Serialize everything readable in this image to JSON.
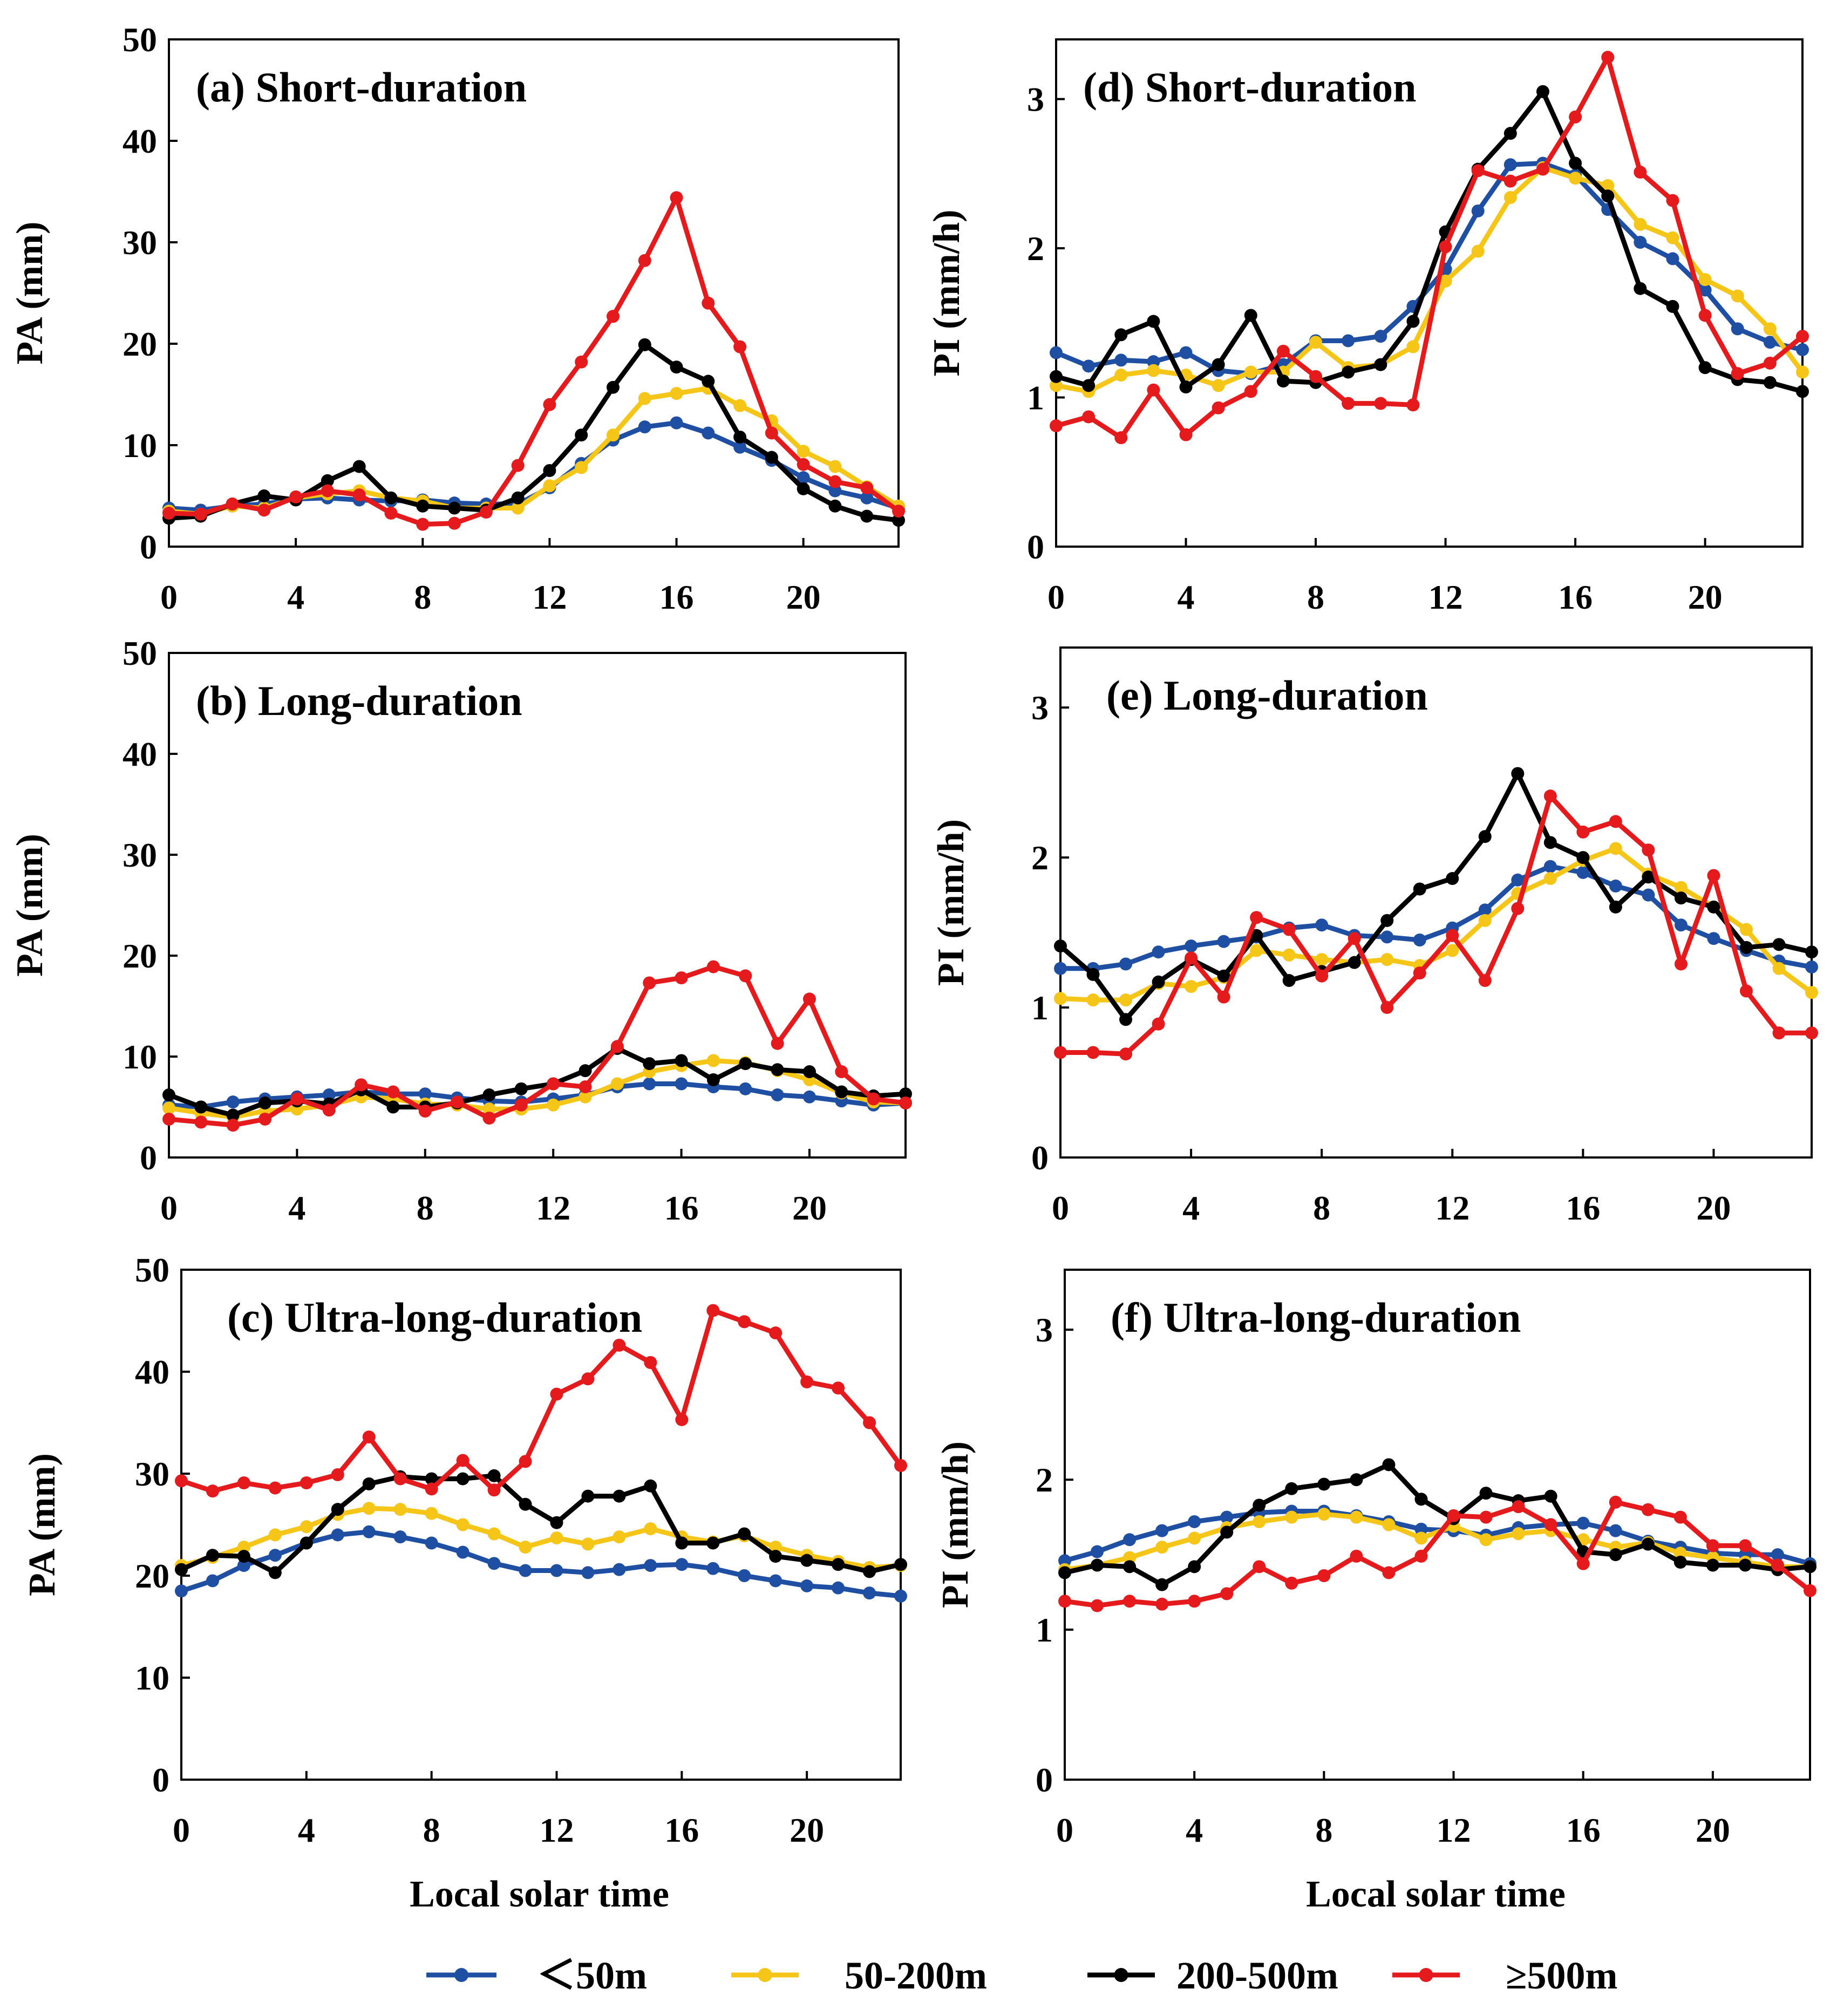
{
  "chart_data": [
    {
      "type": "line",
      "title": "(a) Short-duration",
      "ylabel": "PA (mm)",
      "xlabel": "",
      "x": [
        0,
        1,
        2,
        3,
        4,
        5,
        6,
        7,
        8,
        9,
        10,
        11,
        12,
        13,
        14,
        15,
        16,
        17,
        18,
        19,
        20,
        21,
        22,
        23
      ],
      "xticks": [
        0,
        4,
        8,
        12,
        16,
        20
      ],
      "ylim": [
        0,
        50
      ],
      "yticks": [
        0,
        10,
        20,
        30,
        40,
        50
      ],
      "series": [
        {
          "name": "＜50m",
          "values": [
            3.8,
            3.6,
            4.0,
            4.2,
            4.7,
            4.8,
            4.6,
            4.5,
            4.6,
            4.3,
            4.2,
            4.2,
            5.8,
            8.2,
            10.5,
            11.8,
            12.2,
            11.2,
            9.8,
            8.5,
            6.8,
            5.5,
            4.8,
            3.8
          ]
        },
        {
          "name": "50-200m",
          "values": [
            3.5,
            3.2,
            4.0,
            3.8,
            4.8,
            5.2,
            5.5,
            4.8,
            4.5,
            3.8,
            3.8,
            3.8,
            6.0,
            7.8,
            11.0,
            14.6,
            15.1,
            15.6,
            13.9,
            12.4,
            9.4,
            7.9,
            5.9,
            4.0
          ]
        },
        {
          "name": "200-500m",
          "values": [
            2.8,
            3.0,
            4.2,
            5.0,
            4.6,
            6.5,
            7.9,
            4.8,
            4.0,
            3.8,
            3.6,
            4.8,
            7.5,
            11.0,
            15.7,
            19.9,
            17.7,
            16.3,
            10.8,
            8.8,
            5.7,
            4.0,
            3.0,
            2.6
          ]
        },
        {
          "name": "≥500m",
          "values": [
            3.3,
            3.2,
            4.2,
            3.6,
            4.9,
            5.5,
            5.1,
            3.3,
            2.2,
            2.3,
            3.4,
            8.0,
            14.0,
            18.2,
            22.7,
            28.2,
            34.4,
            24.0,
            19.7,
            11.2,
            8.1,
            6.4,
            5.8,
            3.5
          ]
        }
      ]
    },
    {
      "type": "line",
      "title": "(b) Long-duration",
      "ylabel": "PA (mm)",
      "xlabel": "",
      "x": [
        0,
        1,
        2,
        3,
        4,
        5,
        6,
        7,
        8,
        9,
        10,
        11,
        12,
        13,
        14,
        15,
        16,
        17,
        18,
        19,
        20,
        21,
        22,
        23
      ],
      "xticks": [
        0,
        4,
        8,
        12,
        16,
        20
      ],
      "ylim": [
        0,
        50
      ],
      "yticks": [
        0,
        10,
        20,
        30,
        40,
        50
      ],
      "series": [
        {
          "name": "＜50m",
          "values": [
            5.2,
            5.0,
            5.5,
            5.8,
            6.0,
            6.2,
            6.5,
            6.3,
            6.3,
            5.9,
            5.6,
            5.5,
            5.8,
            6.2,
            7.0,
            7.3,
            7.3,
            7.0,
            6.8,
            6.2,
            6.0,
            5.6,
            5.2,
            5.4
          ]
        },
        {
          "name": "50-200m",
          "values": [
            4.9,
            4.4,
            4.0,
            4.6,
            4.8,
            5.2,
            6.0,
            5.8,
            5.3,
            5.2,
            4.8,
            4.8,
            5.2,
            6.0,
            7.3,
            8.5,
            9.1,
            9.6,
            9.4,
            8.6,
            7.7,
            6.4,
            5.5,
            5.4
          ]
        },
        {
          "name": "200-500m",
          "values": [
            6.2,
            5.0,
            4.2,
            5.4,
            5.6,
            5.3,
            6.7,
            5.0,
            5.0,
            5.4,
            6.2,
            6.8,
            7.3,
            8.6,
            10.8,
            9.3,
            9.6,
            7.7,
            9.3,
            8.7,
            8.5,
            6.5,
            6.1,
            6.3
          ]
        },
        {
          "name": "≥500m",
          "values": [
            3.8,
            3.5,
            3.2,
            3.8,
            5.8,
            4.7,
            7.2,
            6.5,
            4.6,
            5.5,
            3.9,
            5.2,
            7.3,
            7.0,
            11.0,
            17.3,
            17.8,
            18.9,
            18.0,
            11.3,
            15.7,
            8.5,
            5.8,
            5.4
          ]
        }
      ]
    },
    {
      "type": "line",
      "title": "(c) Ultra-long-duration",
      "ylabel": "PA (mm)",
      "xlabel": "Local solar time",
      "x": [
        0,
        1,
        2,
        3,
        4,
        5,
        6,
        7,
        8,
        9,
        10,
        11,
        12,
        13,
        14,
        15,
        16,
        17,
        18,
        19,
        20,
        21,
        22,
        23
      ],
      "xticks": [
        0,
        4,
        8,
        12,
        16,
        20
      ],
      "ylim": [
        0,
        50
      ],
      "yticks": [
        0,
        10,
        20,
        30,
        40,
        50
      ],
      "series": [
        {
          "name": "＜50m",
          "values": [
            18.5,
            19.5,
            21.0,
            22.0,
            23.2,
            24.0,
            24.3,
            23.8,
            23.2,
            22.3,
            21.2,
            20.5,
            20.5,
            20.3,
            20.6,
            21.0,
            21.1,
            20.7,
            20.0,
            19.5,
            19.0,
            18.8,
            18.3,
            18.0
          ]
        },
        {
          "name": "50-200m",
          "values": [
            21.0,
            21.8,
            22.8,
            24.0,
            24.8,
            26.0,
            26.6,
            26.5,
            26.1,
            25.0,
            24.1,
            22.8,
            23.7,
            23.1,
            23.8,
            24.6,
            23.8,
            23.3,
            23.9,
            22.8,
            22.0,
            21.4,
            20.8,
            21.0
          ]
        },
        {
          "name": "200-500m",
          "values": [
            20.6,
            22.0,
            21.9,
            20.3,
            23.2,
            26.5,
            29.0,
            29.7,
            29.5,
            29.5,
            29.8,
            27.0,
            25.2,
            27.8,
            27.8,
            28.8,
            23.2,
            23.2,
            24.1,
            21.9,
            21.5,
            21.1,
            20.4,
            21.1
          ]
        },
        {
          "name": "≥500m",
          "values": [
            29.3,
            28.3,
            29.1,
            28.6,
            29.1,
            29.9,
            33.6,
            29.5,
            28.5,
            31.3,
            28.4,
            31.2,
            37.8,
            39.3,
            42.6,
            40.9,
            35.3,
            46.0,
            44.9,
            43.8,
            39.0,
            38.4,
            35.0,
            30.8
          ]
        }
      ]
    },
    {
      "type": "line",
      "title": "(d) Short-duration",
      "ylabel": "PI (mm/h)",
      "xlabel": "",
      "x": [
        0,
        1,
        2,
        3,
        4,
        5,
        6,
        7,
        8,
        9,
        10,
        11,
        12,
        13,
        14,
        15,
        16,
        17,
        18,
        19,
        20,
        21,
        22,
        23
      ],
      "xticks": [
        0,
        4,
        8,
        12,
        16,
        20
      ],
      "ylim": [
        0,
        3.4
      ],
      "yticks": [
        0,
        1,
        2,
        3
      ],
      "series": [
        {
          "name": "＜50m",
          "values": [
            1.3,
            1.21,
            1.25,
            1.24,
            1.3,
            1.18,
            1.16,
            1.22,
            1.38,
            1.38,
            1.41,
            1.61,
            1.86,
            2.25,
            2.56,
            2.57,
            2.49,
            2.26,
            2.04,
            1.93,
            1.72,
            1.46,
            1.37,
            1.32
          ]
        },
        {
          "name": "50-200m",
          "values": [
            1.08,
            1.04,
            1.15,
            1.18,
            1.15,
            1.08,
            1.17,
            1.17,
            1.37,
            1.2,
            1.22,
            1.34,
            1.78,
            1.98,
            2.34,
            2.54,
            2.47,
            2.42,
            2.16,
            2.07,
            1.79,
            1.68,
            1.46,
            1.17
          ]
        },
        {
          "name": "200-500m",
          "values": [
            1.14,
            1.08,
            1.42,
            1.51,
            1.07,
            1.22,
            1.55,
            1.11,
            1.1,
            1.17,
            1.22,
            1.51,
            2.11,
            2.53,
            2.77,
            3.05,
            2.57,
            2.35,
            1.73,
            1.61,
            1.2,
            1.12,
            1.1,
            1.04
          ]
        },
        {
          "name": "≥500m",
          "values": [
            0.81,
            0.87,
            0.73,
            1.05,
            0.75,
            0.93,
            1.04,
            1.31,
            1.14,
            0.96,
            0.96,
            0.95,
            2.01,
            2.52,
            2.45,
            2.53,
            2.88,
            3.28,
            2.51,
            2.32,
            1.55,
            1.16,
            1.23,
            1.41
          ]
        }
      ]
    },
    {
      "type": "line",
      "title": "(e) Long-duration",
      "ylabel": "PI (mm/h)",
      "xlabel": "",
      "x": [
        0,
        1,
        2,
        3,
        4,
        5,
        6,
        7,
        8,
        9,
        10,
        11,
        12,
        13,
        14,
        15,
        16,
        17,
        18,
        19,
        20,
        21,
        22,
        23
      ],
      "xticks": [
        0,
        4,
        8,
        12,
        16,
        20
      ],
      "ylim": [
        0,
        3.4
      ],
      "yticks": [
        0,
        1,
        2,
        3
      ],
      "series": [
        {
          "name": "＜50m",
          "values": [
            1.26,
            1.26,
            1.29,
            1.37,
            1.41,
            1.44,
            1.47,
            1.53,
            1.55,
            1.48,
            1.47,
            1.45,
            1.53,
            1.65,
            1.85,
            1.94,
            1.9,
            1.81,
            1.75,
            1.55,
            1.46,
            1.38,
            1.31,
            1.27
          ]
        },
        {
          "name": "50-200m",
          "values": [
            1.06,
            1.05,
            1.05,
            1.16,
            1.14,
            1.2,
            1.38,
            1.35,
            1.32,
            1.3,
            1.32,
            1.28,
            1.38,
            1.58,
            1.76,
            1.86,
            1.98,
            2.06,
            1.89,
            1.8,
            1.67,
            1.52,
            1.26,
            1.1
          ]
        },
        {
          "name": "200-500m",
          "values": [
            1.41,
            1.22,
            0.92,
            1.17,
            1.32,
            1.21,
            1.48,
            1.18,
            1.24,
            1.3,
            1.58,
            1.79,
            1.86,
            2.14,
            2.56,
            2.1,
            2.0,
            1.67,
            1.87,
            1.73,
            1.67,
            1.4,
            1.42,
            1.37
          ]
        },
        {
          "name": "≥500m",
          "values": [
            0.7,
            0.7,
            0.69,
            0.89,
            1.33,
            1.07,
            1.6,
            1.52,
            1.21,
            1.46,
            1.0,
            1.23,
            1.48,
            1.18,
            1.66,
            2.41,
            2.17,
            2.24,
            2.05,
            1.29,
            1.88,
            1.11,
            0.83,
            0.83
          ]
        }
      ]
    },
    {
      "type": "line",
      "title": "(f) Ultra-long-duration",
      "ylabel": "PI (mm/h)",
      "xlabel": "Local solar time",
      "x": [
        0,
        1,
        2,
        3,
        4,
        5,
        6,
        7,
        8,
        9,
        10,
        11,
        12,
        13,
        14,
        15,
        16,
        17,
        18,
        19,
        20,
        21,
        22,
        23
      ],
      "xticks": [
        0,
        4,
        8,
        12,
        16,
        20
      ],
      "ylim": [
        0,
        3.4
      ],
      "yticks": [
        0,
        1,
        2,
        3
      ],
      "series": [
        {
          "name": "＜50m",
          "values": [
            1.46,
            1.52,
            1.6,
            1.66,
            1.72,
            1.75,
            1.78,
            1.79,
            1.79,
            1.76,
            1.72,
            1.67,
            1.66,
            1.63,
            1.68,
            1.7,
            1.71,
            1.66,
            1.59,
            1.55,
            1.51,
            1.5,
            1.5,
            1.44
          ]
        },
        {
          "name": "50-200m",
          "values": [
            1.4,
            1.43,
            1.48,
            1.55,
            1.61,
            1.68,
            1.72,
            1.75,
            1.77,
            1.75,
            1.7,
            1.61,
            1.69,
            1.6,
            1.64,
            1.66,
            1.6,
            1.55,
            1.58,
            1.51,
            1.48,
            1.45,
            1.42,
            1.42
          ]
        },
        {
          "name": "200-500m",
          "values": [
            1.38,
            1.43,
            1.42,
            1.3,
            1.42,
            1.65,
            1.83,
            1.94,
            1.97,
            2.0,
            2.1,
            1.87,
            1.74,
            1.91,
            1.86,
            1.89,
            1.52,
            1.5,
            1.57,
            1.45,
            1.43,
            1.43,
            1.4,
            1.42
          ]
        },
        {
          "name": "≥500m",
          "values": [
            1.19,
            1.16,
            1.19,
            1.17,
            1.19,
            1.24,
            1.42,
            1.31,
            1.36,
            1.49,
            1.38,
            1.49,
            1.76,
            1.75,
            1.82,
            1.7,
            1.44,
            1.85,
            1.8,
            1.75,
            1.56,
            1.56,
            1.43,
            1.26
          ]
        }
      ]
    }
  ],
  "legend": {
    "placement": "bottom",
    "items": [
      {
        "label": "＜50m",
        "color": "#1f4fa3"
      },
      {
        "label": "50-200m",
        "color": "#f5c518"
      },
      {
        "label": "200-500m",
        "color": "#000000"
      },
      {
        "label": "≥500m",
        "color": "#e41a1c"
      }
    ]
  }
}
